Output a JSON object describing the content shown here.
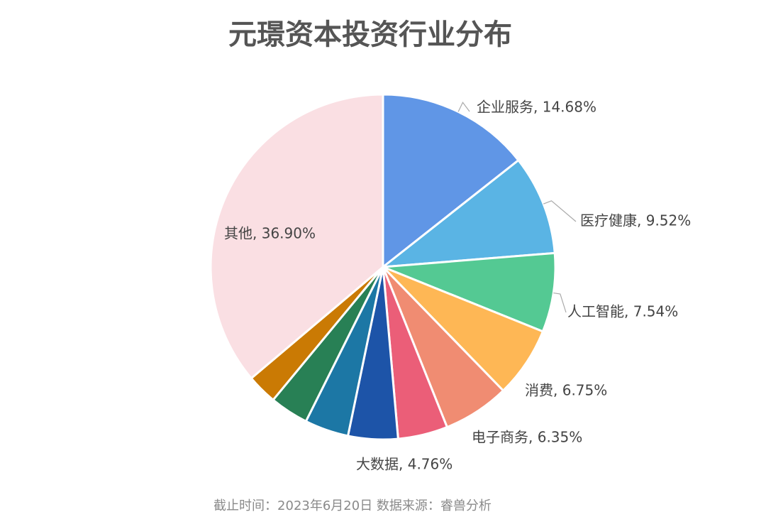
{
  "chart_data": {
    "type": "pie",
    "title": "元璟资本投资行业分布",
    "start_angle_deg": 0,
    "direction": "clockwise",
    "slices": [
      {
        "label": "企业服务",
        "value": 14.68,
        "value_text": "14.68%",
        "color": "#6096E6",
        "show_label": true
      },
      {
        "label": "医疗健康",
        "value": 9.52,
        "value_text": "9.52%",
        "color": "#5AB4E4",
        "show_label": true
      },
      {
        "label": "人工智能",
        "value": 7.54,
        "value_text": "7.54%",
        "color": "#54C993",
        "show_label": true
      },
      {
        "label": "消费",
        "value": 6.75,
        "value_text": "6.75%",
        "color": "#FEB755",
        "show_label": true
      },
      {
        "label": "电子商务",
        "value": 6.35,
        "value_text": "6.35%",
        "color": "#F08C72",
        "show_label": true
      },
      {
        "label": "",
        "value": 4.76,
        "value_text": "",
        "color": "#EB5E78",
        "show_label": false
      },
      {
        "label": "大数据",
        "value": 4.76,
        "value_text": "4.76%",
        "color": "#1D54A8",
        "show_label": true
      },
      {
        "label": "",
        "value": 4.2,
        "value_text": "",
        "color": "#1C77A5",
        "show_label": false
      },
      {
        "label": "",
        "value": 3.7,
        "value_text": "",
        "color": "#288055",
        "show_label": false
      },
      {
        "label": "",
        "value": 2.9,
        "value_text": "",
        "color": "#CA7A04",
        "show_label": false
      },
      {
        "label": "其他",
        "value": 36.9,
        "value_text": "36.90%",
        "color": "#FADFE3",
        "show_label": true
      }
    ]
  },
  "footer": {
    "text": "截止时间：2023年6月20日   数据来源：睿兽分析"
  }
}
